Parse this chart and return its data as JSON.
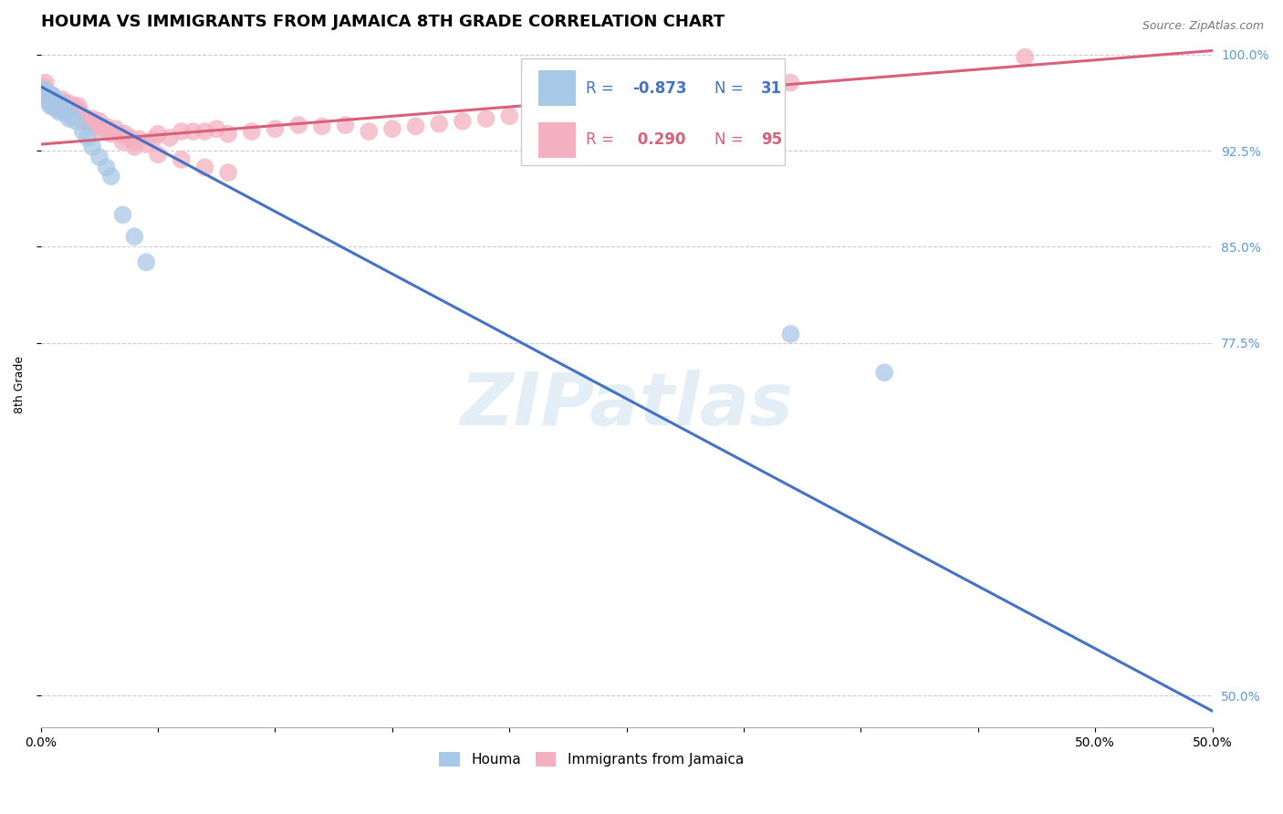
{
  "title": "HOUMA VS IMMIGRANTS FROM JAMAICA 8TH GRADE CORRELATION CHART",
  "source": "Source: ZipAtlas.com",
  "ylabel": "8th Grade",
  "xlim": [
    0.0,
    0.5
  ],
  "ylim": [
    0.475,
    1.01
  ],
  "yticks": [
    0.5,
    0.775,
    0.85,
    0.925,
    1.0
  ],
  "ytick_labels": [
    "50.0%",
    "77.5%",
    "85.0%",
    "92.5%",
    "100.0%"
  ],
  "xticks": [
    0.0,
    0.05,
    0.1,
    0.15,
    0.2,
    0.25,
    0.3,
    0.35,
    0.4,
    0.45,
    0.5
  ],
  "xtick_edge_labels": {
    "0.0": "0.0%",
    "0.5": "50.0%"
  },
  "houma_R": -0.873,
  "houma_N": 31,
  "jamaica_R": 0.29,
  "jamaica_N": 95,
  "houma_color": "#a8c8e8",
  "jamaica_color": "#f4b0c0",
  "houma_line_color": "#4472c4",
  "jamaica_line_color": "#d9607a",
  "watermark": "ZIPatlas",
  "houma_line_x0": 0.0,
  "houma_line_y0": 0.975,
  "houma_line_x1": 0.5,
  "houma_line_y1": 0.488,
  "jamaica_line_x0": 0.0,
  "jamaica_line_y0": 0.93,
  "jamaica_line_x1": 0.5,
  "jamaica_line_y1": 1.003,
  "houma_x": [
    0.001,
    0.002,
    0.003,
    0.003,
    0.004,
    0.004,
    0.005,
    0.005,
    0.006,
    0.006,
    0.007,
    0.007,
    0.008,
    0.008,
    0.009,
    0.01,
    0.011,
    0.012,
    0.013,
    0.015,
    0.018,
    0.02,
    0.022,
    0.025,
    0.028,
    0.03,
    0.035,
    0.04,
    0.045,
    0.32,
    0.36
  ],
  "houma_y": [
    0.973,
    0.971,
    0.968,
    0.965,
    0.962,
    0.96,
    0.968,
    0.963,
    0.965,
    0.96,
    0.962,
    0.958,
    0.96,
    0.955,
    0.962,
    0.958,
    0.955,
    0.95,
    0.952,
    0.948,
    0.94,
    0.935,
    0.928,
    0.92,
    0.912,
    0.905,
    0.875,
    0.858,
    0.838,
    0.782,
    0.752
  ],
  "jamaica_x": [
    0.001,
    0.002,
    0.002,
    0.003,
    0.003,
    0.004,
    0.004,
    0.005,
    0.005,
    0.006,
    0.006,
    0.007,
    0.007,
    0.008,
    0.008,
    0.009,
    0.009,
    0.01,
    0.01,
    0.011,
    0.011,
    0.012,
    0.012,
    0.013,
    0.014,
    0.014,
    0.015,
    0.015,
    0.016,
    0.017,
    0.018,
    0.019,
    0.02,
    0.021,
    0.022,
    0.023,
    0.025,
    0.026,
    0.028,
    0.03,
    0.032,
    0.034,
    0.036,
    0.038,
    0.04,
    0.042,
    0.045,
    0.048,
    0.05,
    0.055,
    0.06,
    0.065,
    0.07,
    0.075,
    0.08,
    0.09,
    0.1,
    0.11,
    0.12,
    0.13,
    0.14,
    0.15,
    0.16,
    0.17,
    0.18,
    0.19,
    0.2,
    0.21,
    0.22,
    0.23,
    0.24,
    0.25,
    0.26,
    0.27,
    0.28,
    0.29,
    0.3,
    0.31,
    0.32,
    0.005,
    0.008,
    0.01,
    0.012,
    0.015,
    0.018,
    0.02,
    0.025,
    0.03,
    0.035,
    0.04,
    0.05,
    0.06,
    0.07,
    0.08,
    0.42
  ],
  "jamaica_y": [
    0.975,
    0.978,
    0.972,
    0.97,
    0.965,
    0.968,
    0.963,
    0.968,
    0.96,
    0.965,
    0.958,
    0.963,
    0.96,
    0.962,
    0.958,
    0.965,
    0.96,
    0.962,
    0.955,
    0.96,
    0.955,
    0.962,
    0.955,
    0.952,
    0.96,
    0.955,
    0.958,
    0.952,
    0.96,
    0.955,
    0.95,
    0.948,
    0.95,
    0.948,
    0.95,
    0.945,
    0.948,
    0.943,
    0.944,
    0.94,
    0.942,
    0.938,
    0.938,
    0.935,
    0.932,
    0.934,
    0.93,
    0.934,
    0.938,
    0.935,
    0.94,
    0.94,
    0.94,
    0.942,
    0.938,
    0.94,
    0.942,
    0.945,
    0.944,
    0.945,
    0.94,
    0.942,
    0.944,
    0.946,
    0.948,
    0.95,
    0.952,
    0.954,
    0.956,
    0.958,
    0.96,
    0.962,
    0.964,
    0.966,
    0.968,
    0.97,
    0.972,
    0.974,
    0.978,
    0.968,
    0.96,
    0.958,
    0.955,
    0.952,
    0.948,
    0.945,
    0.94,
    0.938,
    0.932,
    0.928,
    0.922,
    0.918,
    0.912,
    0.908,
    0.998
  ],
  "legend_border_color": "#cccccc",
  "grid_color": "#cccccc",
  "background_color": "#ffffff",
  "title_fontsize": 13,
  "axis_label_fontsize": 9,
  "tick_fontsize": 10,
  "right_tick_color": "#5b9bd5"
}
